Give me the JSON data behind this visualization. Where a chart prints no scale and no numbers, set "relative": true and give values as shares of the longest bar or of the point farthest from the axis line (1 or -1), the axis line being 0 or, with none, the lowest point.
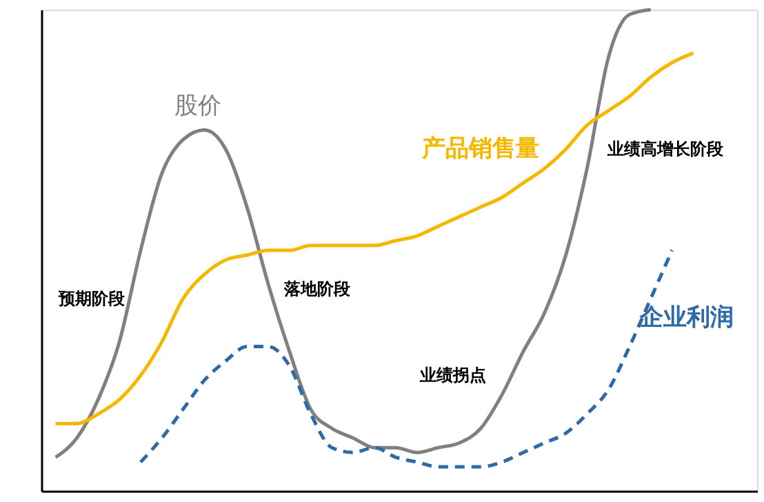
{
  "chart_data": {
    "type": "line",
    "relative": true,
    "tick_labels": false,
    "categories": [
      null,
      null,
      null,
      null,
      null,
      null,
      null,
      null,
      null,
      null,
      null,
      null,
      null,
      null,
      null,
      null,
      null,
      null,
      null,
      null,
      null,
      null,
      null,
      null,
      null,
      null,
      null,
      null,
      null,
      null,
      null
    ],
    "series": [
      {
        "name": "股价",
        "color": "#808080",
        "line_style": "solid",
        "values": [
          0.07,
          0.11,
          0.19,
          0.31,
          0.5,
          0.66,
          0.73,
          0.75,
          0.71,
          0.59,
          0.43,
          0.29,
          0.17,
          0.13,
          0.11,
          0.09,
          0.09,
          0.08,
          0.09,
          0.1,
          0.13,
          0.2,
          0.29,
          0.37,
          0.49,
          0.67,
          0.9,
          0.99,
          1.0,
          null,
          null
        ]
      },
      {
        "name": "产品销售量",
        "color": "#f5b800",
        "line_style": "solid",
        "values": [
          0.14,
          0.14,
          0.16,
          0.19,
          0.24,
          0.31,
          0.4,
          0.45,
          0.48,
          0.49,
          0.5,
          0.5,
          0.51,
          0.51,
          0.51,
          0.51,
          0.52,
          0.53,
          0.55,
          0.57,
          0.59,
          0.61,
          0.64,
          0.67,
          0.71,
          0.76,
          0.79,
          0.82,
          0.86,
          0.89,
          0.91
        ]
      },
      {
        "name": "企业利润",
        "color": "#2e6aa8",
        "line_style": "dashed",
        "values": [
          null,
          null,
          null,
          null,
          0.06,
          0.11,
          0.17,
          0.23,
          0.27,
          0.3,
          0.3,
          0.26,
          0.16,
          0.09,
          0.08,
          0.09,
          0.07,
          0.06,
          0.05,
          0.05,
          0.05,
          0.06,
          0.08,
          0.1,
          0.12,
          0.16,
          0.21,
          0.3,
          0.4,
          0.5,
          null
        ]
      }
    ],
    "annotations": [
      "预期阶段",
      "落地阶段",
      "业绩拐点",
      "业绩高增长阶段"
    ]
  }
}
